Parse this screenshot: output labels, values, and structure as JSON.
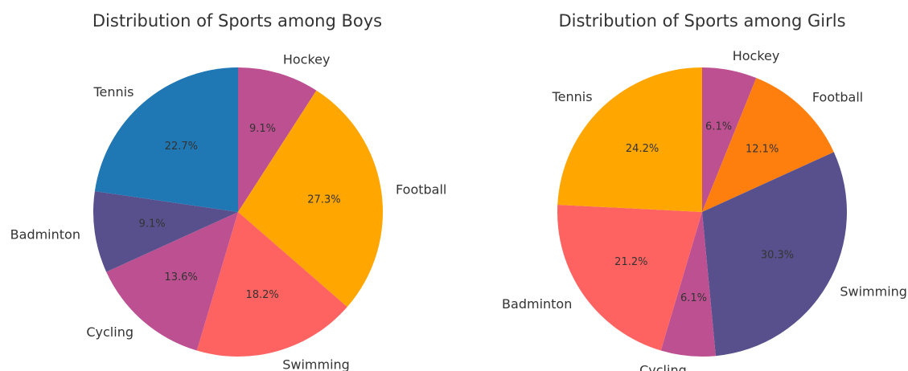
{
  "chart_data": [
    {
      "type": "pie",
      "title": "Distribution of Sports among Boys",
      "start_angle_deg": 90,
      "direction": "clockwise",
      "slices": [
        {
          "label": "Hockey",
          "value": 9.1,
          "pct_label": "9.1%",
          "color": "#BC5090"
        },
        {
          "label": "Football",
          "value": 27.3,
          "pct_label": "27.3%",
          "color": "#FFA600"
        },
        {
          "label": "Swimming",
          "value": 18.2,
          "pct_label": "18.2%",
          "color": "#FF6361"
        },
        {
          "label": "Cycling",
          "value": 13.6,
          "pct_label": "13.6%",
          "color": "#BC5090"
        },
        {
          "label": "Badminton",
          "value": 9.1,
          "pct_label": "9.1%",
          "color": "#58508D"
        },
        {
          "label": "Tennis",
          "value": 22.7,
          "pct_label": "22.7%",
          "color": "#1F77B4"
        }
      ]
    },
    {
      "type": "pie",
      "title": "Distribution of Sports among Girls",
      "start_angle_deg": 90,
      "direction": "clockwise",
      "slices": [
        {
          "label": "Hockey",
          "value": 6.1,
          "pct_label": "6.1%",
          "color": "#BC5090"
        },
        {
          "label": "Football",
          "value": 12.1,
          "pct_label": "12.1%",
          "color": "#FF7F0E"
        },
        {
          "label": "Swimming",
          "value": 30.3,
          "pct_label": "30.3%",
          "color": "#58508D"
        },
        {
          "label": "Cycling",
          "value": 6.1,
          "pct_label": "6.1%",
          "color": "#BC5090"
        },
        {
          "label": "Badminton",
          "value": 21.2,
          "pct_label": "21.2%",
          "color": "#FF6361"
        },
        {
          "label": "Tennis",
          "value": 24.2,
          "pct_label": "24.2%",
          "color": "#FFA600"
        }
      ]
    }
  ]
}
